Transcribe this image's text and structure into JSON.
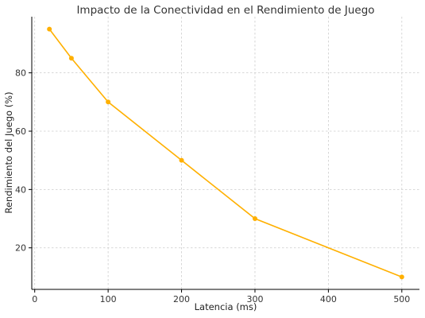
{
  "chart_data": {
    "type": "line",
    "title": "Impacto de la Conectividad en el Rendimiento de Juego",
    "xlabel": "Latencia (ms)",
    "ylabel": "Rendimiento del Juego (%)",
    "x": [
      20,
      50,
      100,
      200,
      300,
      500
    ],
    "series": [
      {
        "values": [
          95,
          85,
          70,
          50,
          30,
          10
        ]
      }
    ],
    "xlim": [
      -4,
      524
    ],
    "ylim": [
      5.75,
      99.25
    ],
    "xticks": [
      0,
      100,
      200,
      300,
      400,
      500
    ],
    "yticks": [
      20,
      40,
      60,
      80
    ],
    "grid": true,
    "line_color": "#FFB000"
  }
}
